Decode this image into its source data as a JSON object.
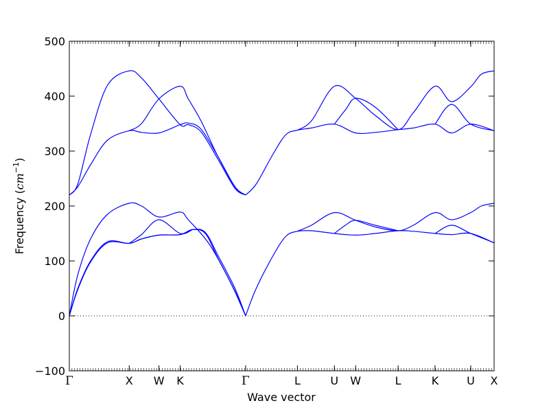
{
  "chart_data": {
    "type": "line",
    "xlabel": "Wave vector",
    "ylabel_text": "Frequency (",
    "ylabel_unit": "cm",
    "ylabel_exp": "−1",
    "ylabel_close": ")",
    "ylim": [
      -100,
      500
    ],
    "xlim": [
      0,
      1
    ],
    "yticks": [
      -100,
      0,
      100,
      200,
      300,
      400,
      500
    ],
    "ytick_labels": [
      "−100",
      "0",
      "100",
      "200",
      "300",
      "400",
      "500"
    ],
    "zero_line": true,
    "grid": false,
    "line_color": "#0000ff",
    "xticks": [
      {
        "x": 0.0,
        "label": "Γ"
      },
      {
        "x": 0.141,
        "label": "X"
      },
      {
        "x": 0.211,
        "label": "W"
      },
      {
        "x": 0.261,
        "label": "K"
      },
      {
        "x": 0.415,
        "label": "Γ"
      },
      {
        "x": 0.537,
        "label": "L"
      },
      {
        "x": 0.624,
        "label": "U"
      },
      {
        "x": 0.674,
        "label": "W"
      },
      {
        "x": 0.774,
        "label": "L"
      },
      {
        "x": 0.861,
        "label": "K"
      },
      {
        "x": 0.945,
        "label": "U"
      },
      {
        "x": 1.0,
        "label": "X"
      }
    ],
    "series": [
      {
        "points": [
          [
            0,
            0
          ],
          [
            0.02,
            50
          ],
          [
            0.05,
            100
          ],
          [
            0.09,
            135
          ],
          [
            0.141,
            132
          ],
          [
            0.17,
            140
          ],
          [
            0.211,
            147
          ],
          [
            0.261,
            148
          ],
          [
            0.29,
            157
          ],
          [
            0.32,
            150
          ],
          [
            0.35,
            105
          ],
          [
            0.39,
            45
          ],
          [
            0.415,
            0
          ]
        ]
      },
      {
        "points": [
          [
            0,
            0
          ],
          [
            0.02,
            48
          ],
          [
            0.05,
            98
          ],
          [
            0.09,
            133
          ],
          [
            0.141,
            132
          ],
          [
            0.17,
            140
          ],
          [
            0.211,
            147
          ],
          [
            0.261,
            148
          ],
          [
            0.29,
            157
          ],
          [
            0.32,
            152
          ],
          [
            0.35,
            110
          ],
          [
            0.39,
            50
          ],
          [
            0.415,
            0
          ]
        ]
      },
      {
        "points": [
          [
            0,
            0
          ],
          [
            0.02,
            75
          ],
          [
            0.05,
            140
          ],
          [
            0.09,
            185
          ],
          [
            0.141,
            205
          ],
          [
            0.17,
            200
          ],
          [
            0.211,
            180
          ],
          [
            0.261,
            189
          ],
          [
            0.28,
            175
          ],
          [
            0.33,
            130
          ],
          [
            0.38,
            60
          ],
          [
            0.415,
            0
          ]
        ]
      },
      {
        "points": [
          [
            0.141,
            132
          ],
          [
            0.17,
            148
          ],
          [
            0.211,
            175
          ],
          [
            0.261,
            150
          ],
          [
            0.29,
            157
          ]
        ]
      },
      {
        "points": [
          [
            0.415,
            0
          ],
          [
            0.44,
            50
          ],
          [
            0.48,
            110
          ],
          [
            0.51,
            145
          ],
          [
            0.537,
            154
          ],
          [
            0.57,
            155
          ],
          [
            0.624,
            150
          ],
          [
            0.674,
            147
          ],
          [
            0.72,
            150
          ],
          [
            0.774,
            155
          ],
          [
            0.81,
            154
          ],
          [
            0.861,
            150
          ],
          [
            0.9,
            148
          ],
          [
            0.945,
            150
          ],
          [
            1.0,
            133
          ]
        ]
      },
      {
        "points": [
          [
            0.537,
            154
          ],
          [
            0.57,
            165
          ],
          [
            0.624,
            188
          ],
          [
            0.674,
            174
          ],
          [
            0.72,
            162
          ],
          [
            0.774,
            155
          ],
          [
            0.81,
            165
          ],
          [
            0.861,
            188
          ],
          [
            0.9,
            175
          ],
          [
            0.945,
            188
          ],
          [
            0.97,
            200
          ],
          [
            1.0,
            205
          ]
        ]
      },
      {
        "points": [
          [
            0.624,
            150
          ],
          [
            0.65,
            165
          ],
          [
            0.674,
            174
          ],
          [
            0.72,
            165
          ],
          [
            0.774,
            155
          ]
        ]
      },
      {
        "points": [
          [
            0.861,
            150
          ],
          [
            0.9,
            165
          ],
          [
            0.945,
            150
          ],
          [
            1.0,
            133
          ]
        ]
      },
      {
        "points": [
          [
            0,
            220
          ],
          [
            0.02,
            235
          ],
          [
            0.05,
            275
          ],
          [
            0.09,
            320
          ],
          [
            0.141,
            337
          ],
          [
            0.17,
            334
          ],
          [
            0.211,
            333
          ],
          [
            0.261,
            348
          ],
          [
            0.28,
            351
          ],
          [
            0.31,
            340
          ],
          [
            0.35,
            290
          ],
          [
            0.39,
            235
          ],
          [
            0.415,
            220
          ]
        ]
      },
      {
        "points": [
          [
            0,
            220
          ],
          [
            0.02,
            240
          ],
          [
            0.05,
            330
          ],
          [
            0.09,
            420
          ],
          [
            0.141,
            446
          ],
          [
            0.17,
            433
          ],
          [
            0.211,
            395
          ],
          [
            0.261,
            348
          ],
          [
            0.28,
            348
          ],
          [
            0.31,
            335
          ],
          [
            0.35,
            285
          ],
          [
            0.39,
            232
          ],
          [
            0.415,
            220
          ]
        ]
      },
      {
        "points": [
          [
            0.141,
            337
          ],
          [
            0.17,
            350
          ],
          [
            0.211,
            395
          ],
          [
            0.261,
            418
          ],
          [
            0.28,
            395
          ],
          [
            0.31,
            355
          ],
          [
            0.35,
            290
          ],
          [
            0.39,
            235
          ],
          [
            0.415,
            220
          ]
        ]
      },
      {
        "points": [
          [
            0.415,
            220
          ],
          [
            0.44,
            240
          ],
          [
            0.48,
            295
          ],
          [
            0.51,
            330
          ],
          [
            0.537,
            338
          ],
          [
            0.57,
            342
          ],
          [
            0.624,
            349
          ],
          [
            0.674,
            333
          ],
          [
            0.72,
            334
          ],
          [
            0.774,
            339
          ],
          [
            0.81,
            342
          ],
          [
            0.861,
            349
          ],
          [
            0.9,
            333
          ],
          [
            0.945,
            349
          ],
          [
            1.0,
            337
          ]
        ]
      },
      {
        "points": [
          [
            0.537,
            338
          ],
          [
            0.57,
            355
          ],
          [
            0.624,
            418
          ],
          [
            0.674,
            396
          ],
          [
            0.72,
            365
          ],
          [
            0.774,
            339
          ],
          [
            0.81,
            370
          ],
          [
            0.861,
            418
          ],
          [
            0.9,
            390
          ],
          [
            0.945,
            417
          ],
          [
            0.97,
            440
          ],
          [
            1.0,
            446
          ]
        ]
      },
      {
        "points": [
          [
            0.624,
            349
          ],
          [
            0.65,
            375
          ],
          [
            0.674,
            396
          ],
          [
            0.72,
            380
          ],
          [
            0.774,
            339
          ]
        ]
      },
      {
        "points": [
          [
            0.861,
            349
          ],
          [
            0.9,
            385
          ],
          [
            0.945,
            349
          ],
          [
            1.0,
            337
          ]
        ]
      }
    ]
  }
}
